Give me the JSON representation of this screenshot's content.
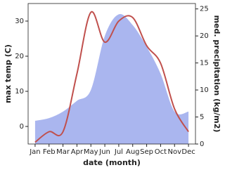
{
  "chart_data": {
    "type": "line",
    "x_label": "date (month)",
    "y_label": "max temp (C)",
    "y2_label": "med. precipitation (kg/m2)",
    "categories": [
      "Jan",
      "Feb",
      "Mar",
      "Apr",
      "May",
      "Jun",
      "Jul",
      "Aug",
      "Sep",
      "Oct",
      "Nov",
      "Dec"
    ],
    "ylim": [
      -5,
      35
    ],
    "yticks": [
      0,
      10,
      20,
      30
    ],
    "y2lim": [
      0,
      26
    ],
    "y2ticks": [
      0,
      5,
      10,
      15,
      20,
      25
    ],
    "series": [
      {
        "name": "med. precipitation",
        "axis": "y2",
        "style": "area",
        "color": "#aab6ef",
        "values": [
          4.3,
          4.8,
          6,
          8,
          10,
          20,
          24,
          22,
          18,
          13,
          6,
          6
        ]
      },
      {
        "name": "max temp",
        "style": "line",
        "color": "#c0504d",
        "values": [
          -4.5,
          -1.5,
          -1.5,
          15,
          32.5,
          24,
          30,
          31,
          23,
          18,
          5,
          -1.5
        ]
      }
    ]
  }
}
